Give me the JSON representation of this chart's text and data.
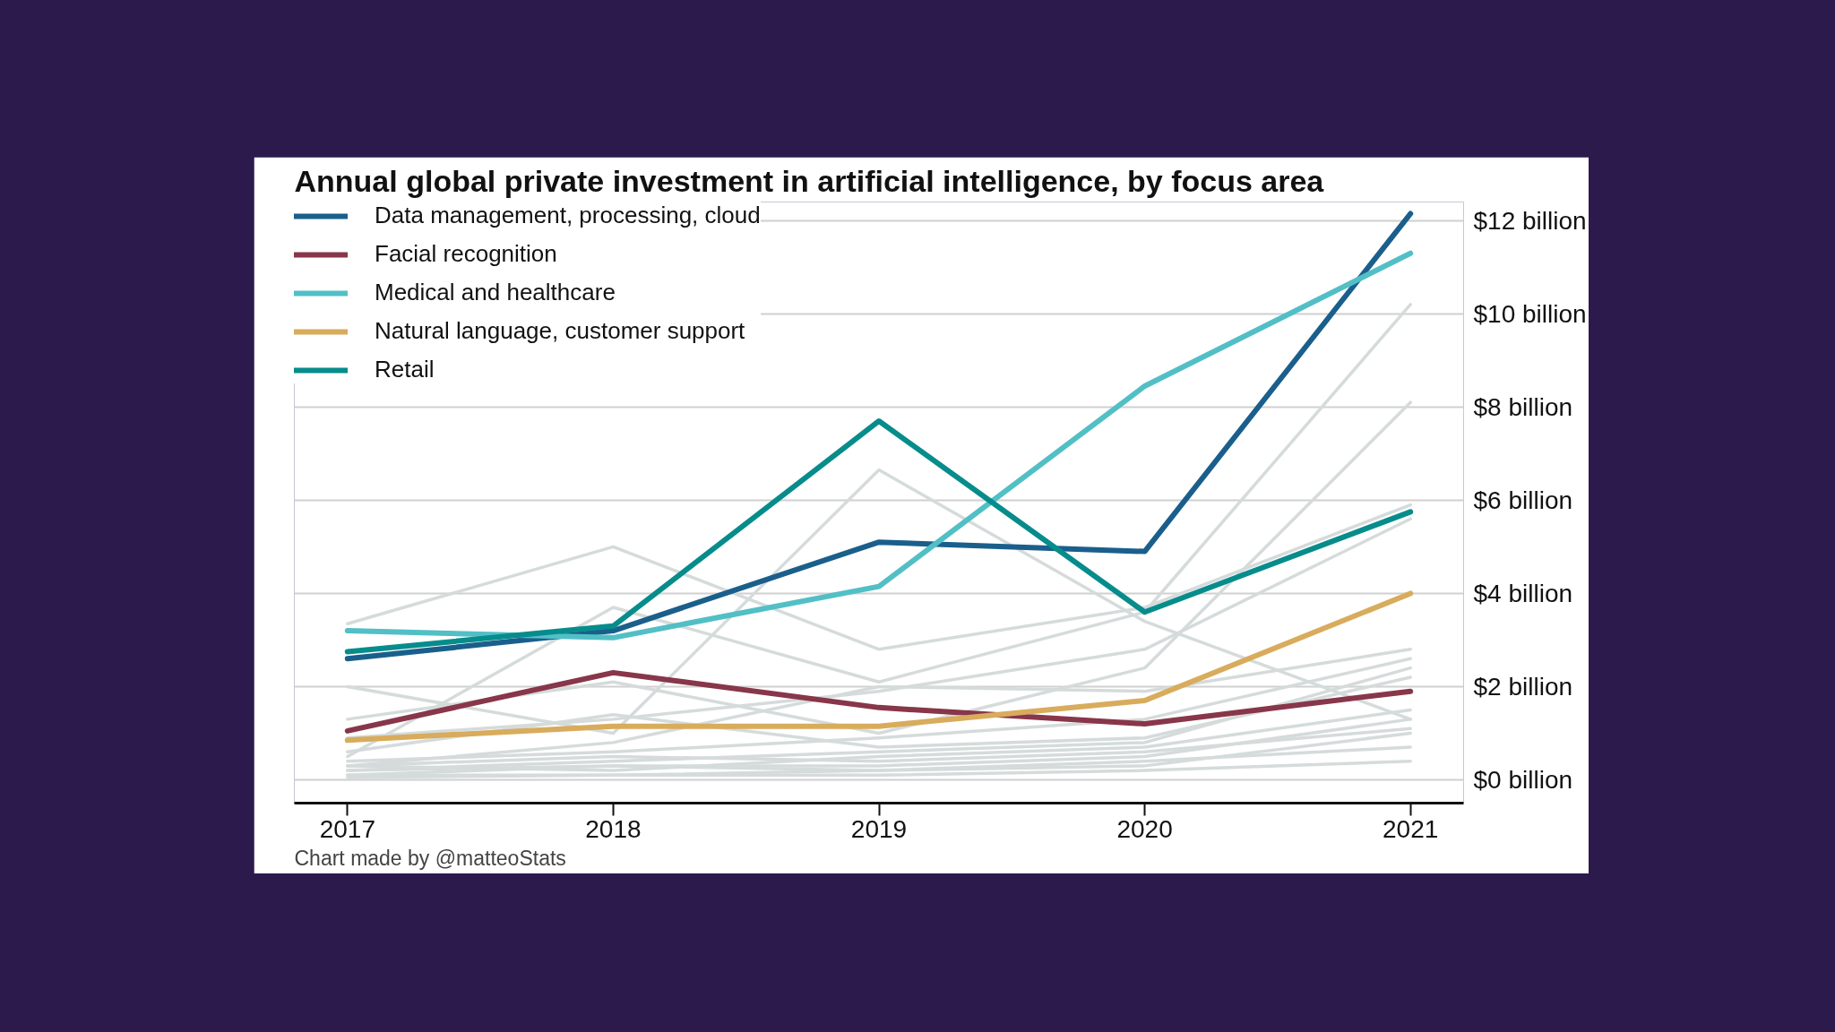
{
  "chart_data": {
    "type": "line",
    "title": "Annual global private investment in artificial intelligence, by focus area",
    "x": [
      2017,
      2018,
      2019,
      2020,
      2021
    ],
    "xlim": [
      2016.8,
      2021.2
    ],
    "xticks": [
      2017,
      2018,
      2019,
      2020,
      2021
    ],
    "ylim": [
      -0.5,
      12.4
    ],
    "yticks": [
      {
        "value": 0,
        "label": "$0 billion"
      },
      {
        "value": 2,
        "label": "$2 billion"
      },
      {
        "value": 4,
        "label": "$4 billion"
      },
      {
        "value": 6,
        "label": "$6 billion"
      },
      {
        "value": 8,
        "label": "$8 billion"
      },
      {
        "value": 10,
        "label": "$10 billion"
      },
      {
        "value": 12,
        "label": "$12 billion"
      }
    ],
    "grid": "y",
    "legend": "top left",
    "line_style": "solid",
    "marker": "none",
    "annotations": [
      "Chart made by @matteoStats"
    ],
    "series": [
      {
        "color": "#d5dbdb",
        "values": [
          3.35,
          5.0,
          2.8,
          3.7,
          5.9
        ]
      },
      {
        "color": "#d5dbdb",
        "values": [
          2.0,
          1.0,
          6.65,
          3.4,
          1.3
        ]
      },
      {
        "color": "#d5dbdb",
        "values": [
          0.5,
          3.7,
          2.1,
          3.6,
          10.2
        ]
      },
      {
        "color": "#d5dbdb",
        "values": [
          1.3,
          2.1,
          1.0,
          2.4,
          8.1
        ]
      },
      {
        "color": "#d5dbdb",
        "values": [
          0.9,
          1.3,
          1.9,
          2.8,
          5.6
        ]
      },
      {
        "color": "#d5dbdb",
        "values": [
          0.3,
          0.8,
          2.0,
          1.9,
          2.8
        ]
      },
      {
        "color": "#d5dbdb",
        "values": [
          0.4,
          0.6,
          0.9,
          1.3,
          2.6
        ]
      },
      {
        "color": "#d5dbdb",
        "values": [
          0.2,
          0.4,
          0.6,
          0.8,
          2.4
        ]
      },
      {
        "color": "#d5dbdb",
        "values": [
          0.6,
          1.4,
          0.7,
          0.9,
          2.2
        ]
      },
      {
        "color": "#d5dbdb",
        "values": [
          0.3,
          0.2,
          0.5,
          0.7,
          1.5
        ]
      },
      {
        "color": "#d5dbdb",
        "values": [
          0.1,
          0.3,
          0.3,
          0.5,
          1.3
        ]
      },
      {
        "color": "#d5dbdb",
        "values": [
          0.3,
          0.5,
          0.4,
          0.6,
          1.1
        ]
      },
      {
        "color": "#d5dbdb",
        "values": [
          0.2,
          0.3,
          0.2,
          0.3,
          1.0
        ]
      },
      {
        "color": "#d5dbdb",
        "values": [
          0.1,
          0.1,
          0.2,
          0.4,
          0.7
        ]
      },
      {
        "color": "#d5dbdb",
        "values": [
          0.05,
          0.1,
          0.1,
          0.2,
          0.4
        ]
      },
      {
        "name": "Data management, processing, cloud",
        "color": "#1a5f8c",
        "values": [
          2.6,
          3.2,
          5.1,
          4.9,
          12.15
        ]
      },
      {
        "name": "Facial recognition",
        "color": "#88364a",
        "values": [
          1.05,
          2.3,
          1.55,
          1.2,
          1.9
        ]
      },
      {
        "name": "Medical and healthcare",
        "color": "#52bfc6",
        "values": [
          3.2,
          3.05,
          4.15,
          8.45,
          11.3
        ]
      },
      {
        "name": "Natural language, customer support",
        "color": "#d8ac5c",
        "values": [
          0.85,
          1.15,
          1.15,
          1.7,
          4.0
        ]
      },
      {
        "name": "Retail",
        "color": "#078c8c",
        "values": [
          2.75,
          3.3,
          7.7,
          3.6,
          5.75
        ]
      }
    ]
  }
}
